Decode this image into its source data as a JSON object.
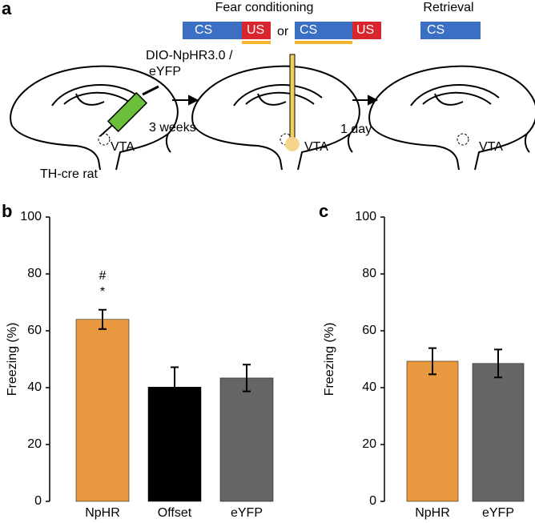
{
  "panel_a": {
    "label": "a",
    "fear_title": "Fear conditioning",
    "retrieval_title": "Retrieval",
    "cs1": "CS",
    "us1": "US",
    "or": "or",
    "cs2": "CS",
    "us2": "US",
    "cs3": "CS",
    "virus_line1": "DIO-NpHR3.0 /",
    "virus_line2": "eYFP",
    "wait1": "3 weeks",
    "wait2": "1 day",
    "vta1": "VTA",
    "vta2": "VTA",
    "vta3": "VTA",
    "animal": "TH-cre rat"
  },
  "chart_data": [
    {
      "type": "bar",
      "panel": "b",
      "ylabel": "Freezing (%)",
      "categories": [
        "NpHR",
        "Offset",
        "eYFP"
      ],
      "series": [
        {
          "values": [
            64,
            40.2,
            43.4
          ],
          "errors": [
            3.4,
            7,
            4.7
          ],
          "colors": [
            "#e8993f",
            "#000000",
            "#666666"
          ]
        }
      ],
      "annotations": [
        "#",
        "*"
      ],
      "ylim": [
        0,
        100
      ],
      "yticks": [
        0,
        20,
        40,
        60,
        80,
        100
      ]
    },
    {
      "type": "bar",
      "panel": "c",
      "ylabel": "Freezing (%)",
      "categories": [
        "NpHR",
        "eYFP"
      ],
      "series": [
        {
          "values": [
            49.3,
            48.5
          ],
          "errors": [
            4.6,
            4.9
          ],
          "colors": [
            "#e8993f",
            "#666666"
          ]
        }
      ],
      "ylim": [
        0,
        100
      ],
      "yticks": [
        0,
        20,
        40,
        60,
        80,
        100
      ]
    }
  ]
}
